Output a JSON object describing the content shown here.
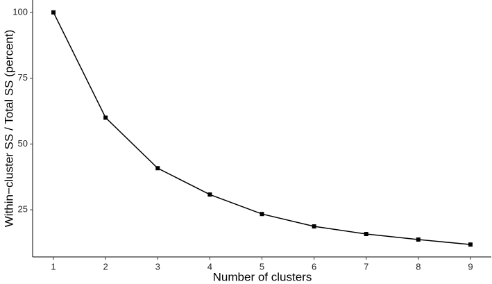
{
  "chart_data": {
    "type": "line",
    "x_label": "Number of clusters",
    "y_label": "Within−cluster SS / Total SS (percent)",
    "x": [
      1,
      2,
      3,
      4,
      5,
      6,
      7,
      8,
      9
    ],
    "series": [
      {
        "color": "#000000",
        "values": [
          100,
          60,
          40.8,
          30.8,
          23.4,
          18.7,
          15.8,
          13.7,
          11.8
        ]
      }
    ],
    "xlim": [
      0.6,
      9.4
    ],
    "xticks": [
      1,
      2,
      3,
      4,
      5,
      6,
      7,
      8,
      9
    ],
    "ylim": [
      7.1,
      104.7
    ],
    "yticks": [
      25,
      50,
      75,
      100
    ],
    "grid": false
  }
}
